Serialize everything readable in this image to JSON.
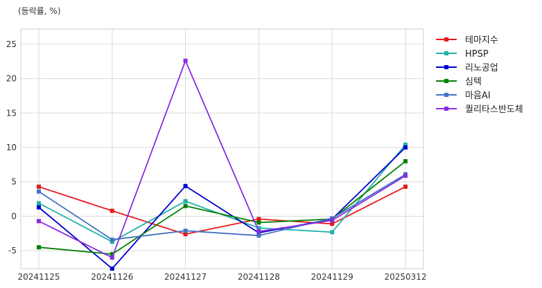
{
  "chart_data": {
    "type": "line",
    "unit_label": "(등락률, %)",
    "categories": [
      "20241125",
      "20241126",
      "20241127",
      "20241128",
      "20241129",
      "20250312"
    ],
    "ylim": [
      -7.6,
      27.2
    ],
    "yticks": [
      -5,
      0,
      5,
      10,
      15,
      20,
      25
    ],
    "grid": true,
    "legend_position": "right",
    "series": [
      {
        "name": "테마지수",
        "color": "#e31a1c",
        "values": [
          4.3,
          0.8,
          -2.6,
          -0.4,
          -1.1,
          4.3
        ]
      },
      {
        "name": "HPSP",
        "color": "#20b2aa",
        "values": [
          1.9,
          -3.7,
          2.2,
          -1.7,
          -2.3,
          10.4
        ]
      },
      {
        "name": "리노공업",
        "color": "#0000cd",
        "values": [
          1.3,
          -7.6,
          4.4,
          -2.4,
          -0.4,
          10.0
        ]
      },
      {
        "name": "심텍",
        "color": "#008000",
        "values": [
          -4.5,
          -5.5,
          1.5,
          -0.9,
          -0.4,
          8.0
        ]
      },
      {
        "name": "마음AI",
        "color": "#4472c4",
        "values": [
          3.6,
          -3.4,
          -2.1,
          -2.8,
          -0.3,
          6.1
        ]
      },
      {
        "name": "퀄리타스반도체",
        "color": "#8a2be2",
        "values": [
          -0.7,
          -6.0,
          22.6,
          -2.2,
          -0.6,
          5.9
        ]
      }
    ]
  }
}
